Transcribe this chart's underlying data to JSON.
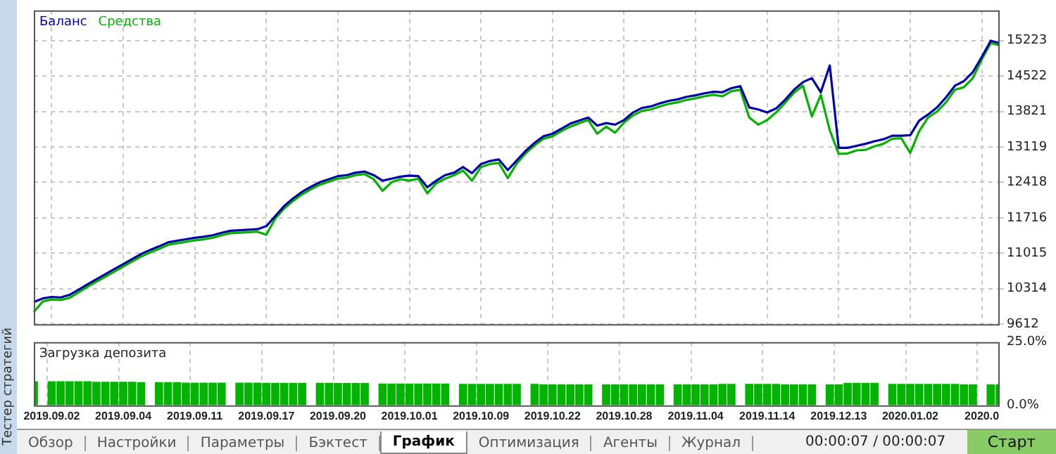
{
  "chart_data": [
    {
      "type": "line",
      "legend": "top left",
      "grid": true,
      "tick_labels": "y",
      "line_style": "solid",
      "marker": "none",
      "categories": [
        null,
        null,
        "2019.09.02",
        null,
        null,
        null,
        null,
        null,
        null,
        null,
        "2019.09.04",
        null,
        null,
        null,
        null,
        null,
        null,
        null,
        "2019.09.11",
        null,
        null,
        null,
        null,
        null,
        null,
        null,
        "2019.09.17",
        null,
        null,
        null,
        null,
        null,
        null,
        null,
        "2019.09.20",
        null,
        null,
        null,
        null,
        null,
        null,
        null,
        "2019.10.01",
        null,
        null,
        null,
        null,
        null,
        null,
        null,
        "2019.10.09",
        null,
        null,
        null,
        null,
        null,
        null,
        null,
        "2019.10.22",
        null,
        null,
        null,
        null,
        null,
        null,
        null,
        "2019.10.28",
        null,
        null,
        null,
        null,
        null,
        null,
        null,
        "2019.11.04",
        null,
        null,
        null,
        null,
        null,
        null,
        null,
        "2019.11.14",
        null,
        null,
        null,
        null,
        null,
        null,
        null,
        "2019.12.13",
        null,
        null,
        null,
        null,
        null,
        null,
        null,
        "2020.01.02",
        null,
        null,
        null,
        null,
        null,
        null,
        null,
        "2020.0",
        null,
        null
      ],
      "ylim": [
        9612,
        15820
      ],
      "yticks": [
        9612,
        10314,
        11015,
        11716,
        12418,
        13119,
        13821,
        14522,
        15223
      ],
      "series": [
        {
          "name": "Баланс",
          "color": "#0000a8",
          "values": [
            10050,
            10120,
            10150,
            10140,
            10190,
            10290,
            10400,
            10500,
            10600,
            10700,
            10800,
            10900,
            11000,
            11080,
            11150,
            11230,
            11260,
            11290,
            11320,
            11340,
            11370,
            11420,
            11460,
            11470,
            11480,
            11490,
            11550,
            11750,
            11950,
            12100,
            12230,
            12330,
            12420,
            12480,
            12540,
            12560,
            12610,
            12630,
            12560,
            12450,
            12490,
            12530,
            12550,
            12540,
            12320,
            12450,
            12560,
            12610,
            12720,
            12600,
            12780,
            12840,
            12870,
            12660,
            12850,
            13040,
            13200,
            13330,
            13380,
            13480,
            13580,
            13640,
            13700,
            13540,
            13590,
            13560,
            13650,
            13800,
            13890,
            13920,
            13980,
            14030,
            14060,
            14110,
            14140,
            14180,
            14210,
            14200,
            14280,
            14320,
            13900,
            13860,
            13800,
            13880,
            14050,
            14250,
            14400,
            14480,
            14200,
            14730,
            13100,
            13100,
            13140,
            13180,
            13230,
            13270,
            13340,
            13340,
            13350,
            13640,
            13760,
            13900,
            14100,
            14330,
            14420,
            14600,
            14900,
            15220,
            15170
          ]
        },
        {
          "name": "Средства",
          "color": "#00b400",
          "values": [
            9850,
            10060,
            10100,
            10090,
            10130,
            10240,
            10350,
            10450,
            10550,
            10650,
            10750,
            10850,
            10950,
            11030,
            11100,
            11180,
            11210,
            11240,
            11270,
            11290,
            11320,
            11370,
            11410,
            11420,
            11430,
            11440,
            11380,
            11700,
            11900,
            12050,
            12180,
            12280,
            12370,
            12430,
            12490,
            12510,
            12560,
            12580,
            12480,
            12250,
            12420,
            12480,
            12450,
            12490,
            12200,
            12400,
            12490,
            12560,
            12650,
            12450,
            12720,
            12780,
            12800,
            12500,
            12790,
            12990,
            13150,
            13280,
            13330,
            13430,
            13520,
            13590,
            13650,
            13380,
            13520,
            13400,
            13600,
            13740,
            13830,
            13860,
            13920,
            13970,
            14000,
            14050,
            14080,
            14120,
            14150,
            14120,
            14220,
            14250,
            13700,
            13560,
            13650,
            13800,
            13990,
            14190,
            14330,
            13720,
            14150,
            13450,
            12980,
            12990,
            13050,
            13060,
            13130,
            13180,
            13280,
            13290,
            13000,
            13430,
            13700,
            13820,
            14000,
            14250,
            14300,
            14480,
            14850,
            15170,
            15130
          ]
        }
      ]
    },
    {
      "type": "bar",
      "title": "Загрузка депозита",
      "grid": "x",
      "tick_labels": true,
      "categories": [
        null,
        null,
        "2019.09.02",
        null,
        null,
        null,
        null,
        null,
        null,
        null,
        "2019.09.04",
        null,
        null,
        null,
        null,
        null,
        null,
        null,
        "2019.09.11",
        null,
        null,
        null,
        null,
        null,
        null,
        null,
        "2019.09.17",
        null,
        null,
        null,
        null,
        null,
        null,
        null,
        "2019.09.20",
        null,
        null,
        null,
        null,
        null,
        null,
        null,
        "2019.10.01",
        null,
        null,
        null,
        null,
        null,
        null,
        null,
        "2019.10.09",
        null,
        null,
        null,
        null,
        null,
        null,
        null,
        "2019.10.22",
        null,
        null,
        null,
        null,
        null,
        null,
        null,
        "2019.10.28",
        null,
        null,
        null,
        null,
        null,
        null,
        null,
        "2019.11.04",
        null,
        null,
        null,
        null,
        null,
        null,
        null,
        "2019.11.14",
        null,
        null,
        null,
        null,
        null,
        null,
        null,
        "2019.12.13",
        null,
        null,
        null,
        null,
        null,
        null,
        null,
        "2020.01.02",
        null,
        null,
        null,
        null,
        null,
        null,
        null,
        "2020.0",
        null,
        null
      ],
      "ylim": [
        0,
        25
      ],
      "yticks": [
        {
          "value": 25,
          "label": "25.0%"
        },
        {
          "value": 0,
          "label": "0.0%"
        }
      ],
      "color": "#00b400",
      "values": [
        9.5,
        null,
        9.5,
        9.5,
        9.5,
        9.5,
        9.5,
        9.3,
        9.3,
        9.3,
        9.3,
        9.3,
        9.2,
        null,
        9.2,
        9.2,
        9.2,
        9,
        9,
        9,
        9,
        9,
        null,
        9,
        9,
        9,
        8.9,
        8.9,
        8.9,
        8.9,
        8.9,
        null,
        8.9,
        8.9,
        8.8,
        8.8,
        8.8,
        8.8,
        null,
        8.6,
        8.6,
        8.6,
        8.6,
        8.6,
        8.6,
        8.6,
        8.6,
        null,
        8.5,
        8.5,
        8.5,
        8.5,
        8.5,
        8.5,
        8.5,
        null,
        8.5,
        8.3,
        8.3,
        8.3,
        8.3,
        8.3,
        8.3,
        null,
        8.3,
        8.3,
        8.3,
        8.3,
        8.3,
        8.3,
        8.3,
        null,
        8.3,
        8.3,
        8.3,
        8.3,
        8.3,
        8.5,
        8.5,
        null,
        8.5,
        8.5,
        8.5,
        8.5,
        8.3,
        8.3,
        8.3,
        8.3,
        null,
        8.3,
        8.3,
        8.9,
        8.9,
        8.9,
        8.9,
        null,
        8.5,
        8.5,
        8.5,
        8.5,
        8.5,
        8.5,
        8.5,
        8.5,
        8.3,
        8.3,
        null,
        8.3,
        8.3
      ],
      "annotations": [
        "Тестер стратегий",
        "Обзор",
        "Настройки",
        "Параметры",
        "Бэктест",
        "График",
        "Оптимизация",
        "Агенты",
        "Журнал",
        "00:00:07 / 00:00:07",
        "Старт"
      ]
    }
  ]
}
